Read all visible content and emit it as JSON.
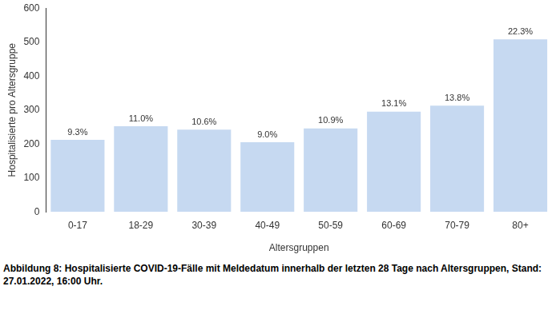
{
  "chart_data": {
    "type": "bar",
    "caption": "Abbildung 8: Hospitalisierte COVID-19-Fälle mit Meldedatum innerhalb der letzten 28 Tage nach Altersgruppen, Stand: 27.01.2022, 16:00 Uhr.",
    "x_label": "Altersgruppen",
    "y_label": "Hospitalisierte pro Altersgruppe",
    "categories": [
      "0-17",
      "18-29",
      "30-39",
      "40-49",
      "50-59",
      "60-69",
      "70-79",
      "80+"
    ],
    "values": [
      212,
      252,
      242,
      205,
      246,
      295,
      313,
      508
    ],
    "annotations": [
      {
        "x": "0-17",
        "text": "9.3%"
      },
      {
        "x": "18-29",
        "text": "11.0%"
      },
      {
        "x": "30-39",
        "text": "10.6%"
      },
      {
        "x": "40-49",
        "text": "9.0%"
      },
      {
        "x": "50-59",
        "text": "10.9%"
      },
      {
        "x": "60-69",
        "text": "13.1%"
      },
      {
        "x": "70-79",
        "text": "13.8%"
      },
      {
        "x": "80+",
        "text": "22.3%"
      }
    ],
    "color": "#c6d9f1",
    "ylim": [
      0,
      600
    ],
    "yticks": [
      0,
      100,
      200,
      300,
      400,
      500,
      600
    ],
    "grid": false
  }
}
